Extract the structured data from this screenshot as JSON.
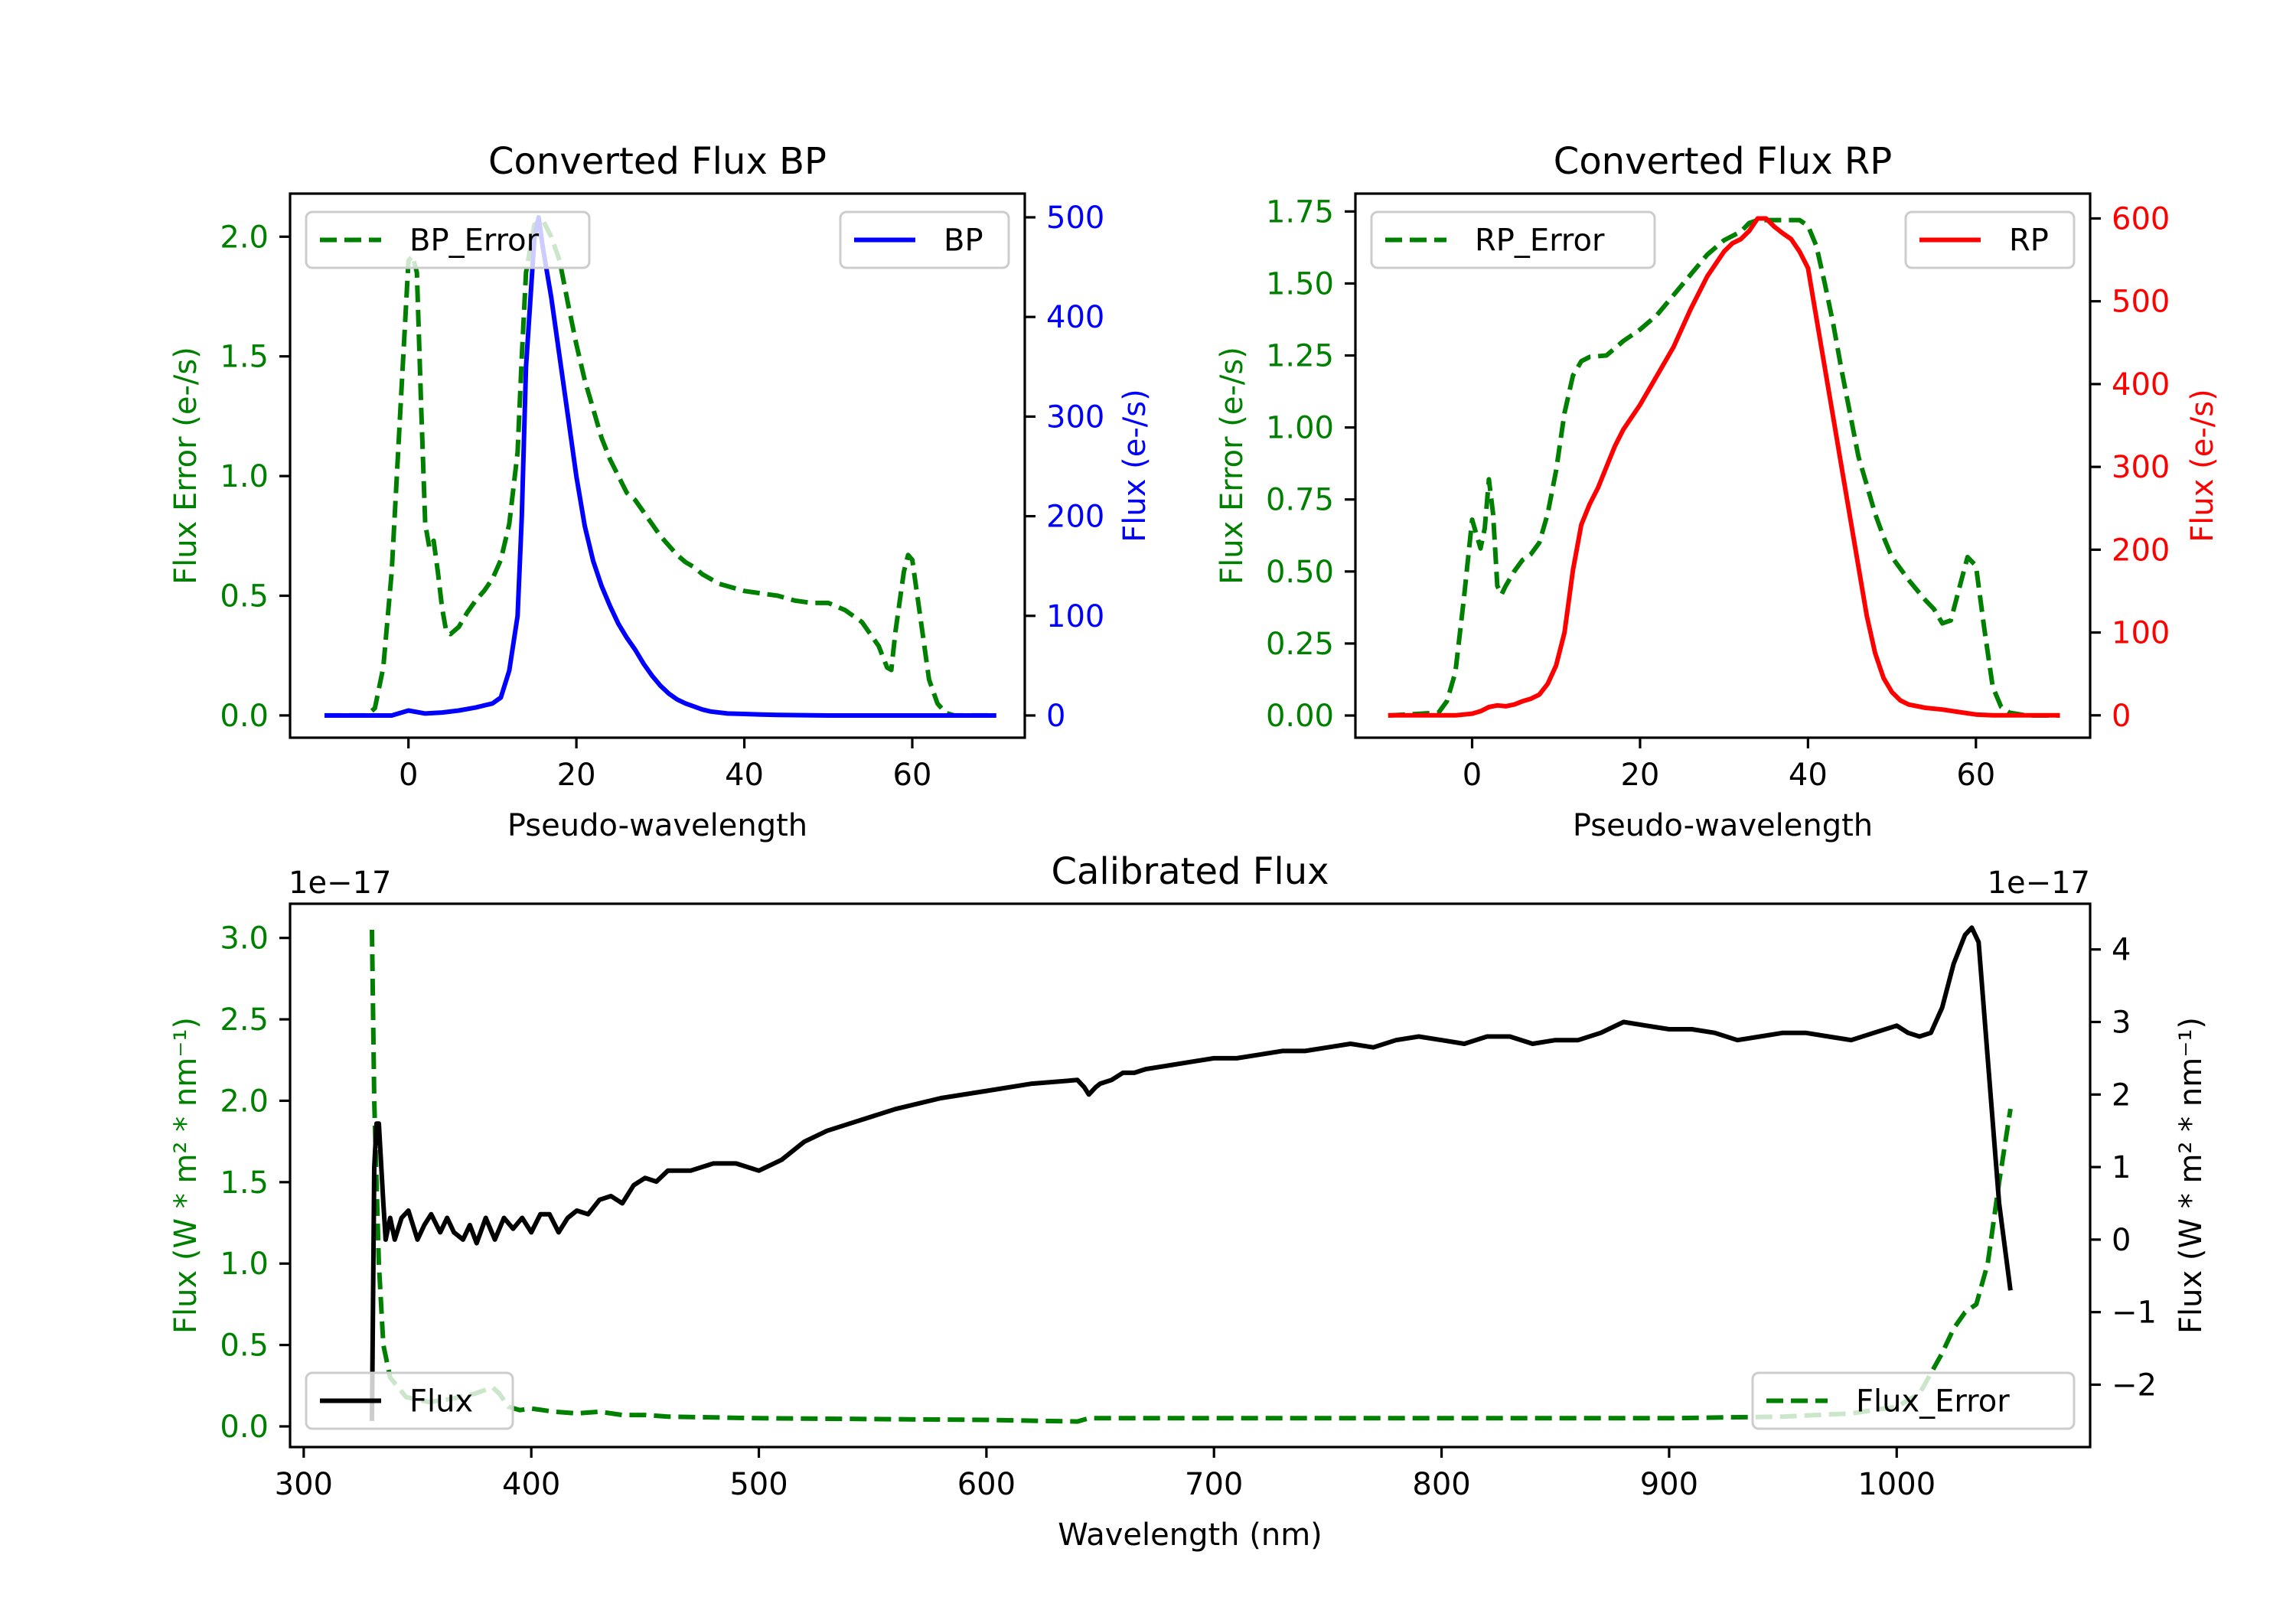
{
  "chart_data": [
    {
      "id": "bp",
      "type": "line",
      "title": "Converted Flux BP",
      "xlabel": "Pseudo-wavelength",
      "ylabel_left": "Flux Error (e-/s)",
      "ylabel_right": "Flux (e-/s)",
      "left_color": "#008000",
      "right_color": "#0000ff",
      "xlim": [
        -14.1,
        73.4
      ],
      "ylim_left": [
        -0.093,
        2.18
      ],
      "ylim_right": [
        -22.3,
        523.8
      ],
      "xticks": [
        0,
        20,
        40,
        60
      ],
      "xtick_labels": [
        "0",
        "20",
        "40",
        "60"
      ],
      "yticks_left": [
        0,
        0.5,
        1.0,
        1.5,
        2.0
      ],
      "ytick_labels_left": [
        "0.0",
        "0.5",
        "1.0",
        "1.5",
        "2.0"
      ],
      "yticks_right": [
        0,
        100,
        200,
        300,
        400,
        500
      ],
      "ytick_labels_right": [
        "0",
        "100",
        "200",
        "300",
        "400",
        "500"
      ],
      "legends": [
        {
          "label": "BP_Error",
          "series": 0,
          "placement": "upper left"
        },
        {
          "label": "BP",
          "series": 1,
          "placement": "upper right"
        }
      ],
      "series": [
        {
          "name": "BP_Error",
          "axis": "left",
          "color": "#008000",
          "style": "dashed",
          "x": [
            -10,
            -5,
            -4,
            -3,
            -2,
            -1,
            0,
            0.5,
            1,
            1.5,
            2,
            2.5,
            3,
            3.5,
            4,
            4.5,
            5,
            6,
            7,
            8,
            9,
            10,
            11,
            12,
            13,
            13.5,
            14,
            15,
            16,
            17,
            18,
            19,
            20,
            21,
            22,
            23,
            24,
            25,
            26,
            27,
            28,
            29,
            30,
            31,
            32,
            33,
            34,
            35,
            36,
            37,
            38,
            40,
            42,
            44,
            46,
            48,
            50,
            52,
            54,
            56,
            57,
            57.5,
            58,
            59,
            59.5,
            60,
            61,
            62,
            63,
            64,
            65,
            70
          ],
          "y": [
            0,
            0,
            0.03,
            0.2,
            0.6,
            1.25,
            1.9,
            1.92,
            1.85,
            1.3,
            0.8,
            0.7,
            0.73,
            0.6,
            0.45,
            0.35,
            0.34,
            0.37,
            0.43,
            0.48,
            0.52,
            0.57,
            0.65,
            0.8,
            1.1,
            1.5,
            1.85,
            2.05,
            2.07,
            2.0,
            1.9,
            1.72,
            1.55,
            1.4,
            1.28,
            1.16,
            1.07,
            1.0,
            0.93,
            0.9,
            0.85,
            0.8,
            0.75,
            0.71,
            0.67,
            0.64,
            0.62,
            0.59,
            0.57,
            0.55,
            0.54,
            0.52,
            0.51,
            0.5,
            0.48,
            0.47,
            0.47,
            0.44,
            0.39,
            0.29,
            0.2,
            0.19,
            0.35,
            0.6,
            0.67,
            0.65,
            0.4,
            0.15,
            0.05,
            0.01,
            0,
            0
          ]
        },
        {
          "name": "BP",
          "axis": "right",
          "color": "#0000ff",
          "style": "solid",
          "x": [
            -10,
            -2,
            0,
            2,
            4,
            6,
            8,
            10,
            11,
            12,
            13,
            13.5,
            14,
            15,
            15.5,
            16,
            17,
            18,
            19,
            20,
            21,
            22,
            23,
            24,
            25,
            26,
            27,
            28,
            29,
            30,
            31,
            32,
            33,
            34,
            35,
            36,
            38,
            40,
            42,
            44,
            50,
            70
          ],
          "y": [
            0,
            0,
            5,
            2,
            3,
            5,
            8,
            12,
            18,
            45,
            100,
            200,
            350,
            480,
            500,
            470,
            420,
            360,
            300,
            240,
            190,
            155,
            130,
            110,
            92,
            78,
            66,
            52,
            40,
            30,
            22,
            16,
            12,
            9,
            6,
            4,
            2,
            1.5,
            1,
            0.5,
            0,
            0
          ]
        }
      ]
    },
    {
      "id": "rp",
      "type": "line",
      "title": "Converted Flux RP",
      "xlabel": "Pseudo-wavelength",
      "ylabel_left": "Flux Error (e-/s)",
      "ylabel_right": "Flux (e-/s)",
      "left_color": "#008000",
      "right_color": "#ff0000",
      "xlim": [
        -13.9,
        73.6
      ],
      "ylim_left": [
        -0.077,
        1.812
      ],
      "ylim_right": [
        -27,
        630
      ],
      "xticks": [
        0,
        20,
        40,
        60
      ],
      "xtick_labels": [
        "0",
        "20",
        "40",
        "60"
      ],
      "yticks_left": [
        0,
        0.25,
        0.5,
        0.75,
        1.0,
        1.25,
        1.5,
        1.75
      ],
      "ytick_labels_left": [
        "0.00",
        "0.25",
        "0.50",
        "0.75",
        "1.00",
        "1.25",
        "1.50",
        "1.75"
      ],
      "yticks_right": [
        0,
        100,
        200,
        300,
        400,
        500,
        600
      ],
      "ytick_labels_right": [
        "0",
        "100",
        "200",
        "300",
        "400",
        "500",
        "600"
      ],
      "legends": [
        {
          "label": "RP_Error",
          "series": 0,
          "placement": "upper left"
        },
        {
          "label": "RP",
          "series": 1,
          "placement": "upper right"
        }
      ],
      "series": [
        {
          "name": "RP_Error",
          "axis": "left",
          "color": "#008000",
          "style": "dashed",
          "x": [
            -10,
            -4,
            -3,
            -2,
            -1,
            0,
            0.5,
            1,
            1.5,
            2,
            2.5,
            3,
            3.5,
            4,
            5,
            6,
            7,
            8,
            9,
            10,
            11,
            12,
            13,
            14,
            16,
            18,
            20,
            22,
            24,
            26,
            28,
            30,
            32,
            33,
            34,
            36,
            38,
            39,
            40,
            41,
            42,
            43,
            44,
            45,
            46,
            47,
            48,
            49,
            50,
            52,
            54,
            55,
            56,
            57,
            58,
            59,
            60,
            61,
            62,
            63,
            64,
            66,
            70
          ],
          "y": [
            0,
            0.01,
            0.05,
            0.15,
            0.4,
            0.68,
            0.63,
            0.58,
            0.65,
            0.82,
            0.7,
            0.45,
            0.42,
            0.45,
            0.5,
            0.54,
            0.56,
            0.6,
            0.7,
            0.85,
            1.05,
            1.18,
            1.23,
            1.245,
            1.25,
            1.3,
            1.34,
            1.39,
            1.46,
            1.53,
            1.6,
            1.65,
            1.68,
            1.71,
            1.72,
            1.72,
            1.72,
            1.72,
            1.7,
            1.63,
            1.5,
            1.36,
            1.2,
            1.05,
            0.9,
            0.8,
            0.7,
            0.62,
            0.55,
            0.47,
            0.4,
            0.37,
            0.32,
            0.33,
            0.44,
            0.55,
            0.52,
            0.3,
            0.1,
            0.03,
            0.01,
            0,
            0
          ]
        },
        {
          "name": "RP",
          "axis": "right",
          "color": "#ff0000",
          "style": "solid",
          "x": [
            -10,
            -2,
            0,
            1,
            2,
            3,
            4,
            5,
            6,
            7,
            8,
            9,
            10,
            11,
            12,
            13,
            14,
            15,
            16,
            17,
            18,
            20,
            22,
            24,
            26,
            28,
            30,
            31,
            32,
            33,
            34,
            35,
            36,
            37,
            38,
            39,
            40,
            41,
            42,
            43,
            44,
            45,
            46,
            47,
            48,
            49,
            50,
            51,
            52,
            54,
            56,
            58,
            60,
            62,
            70
          ],
          "y": [
            0,
            0,
            2,
            5,
            10,
            12,
            11,
            13,
            17,
            20,
            25,
            38,
            60,
            100,
            175,
            230,
            255,
            275,
            300,
            325,
            345,
            375,
            410,
            445,
            490,
            530,
            560,
            570,
            575,
            585,
            600,
            600,
            590,
            582,
            575,
            560,
            540,
            480,
            420,
            360,
            300,
            240,
            180,
            120,
            75,
            45,
            28,
            18,
            13,
            9,
            7,
            4,
            1,
            0,
            0
          ]
        }
      ]
    },
    {
      "id": "cal",
      "type": "line",
      "title": "Calibrated Flux",
      "xlabel": "Wavelength (nm)",
      "ylabel_left": "Flux (W * m² * nm⁻¹)",
      "ylabel_right": "Flux (W * m² * nm⁻¹)",
      "offset_left": "1e−17",
      "offset_right": "1e−17",
      "left_color": "#008000",
      "right_color": "#000000",
      "xlim": [
        294,
        1085
      ],
      "ylim_left": [
        -0.127,
        3.21
      ],
      "ylim_right": [
        -2.86,
        4.63
      ],
      "xticks": [
        300,
        400,
        500,
        600,
        700,
        800,
        900,
        1000
      ],
      "xtick_labels": [
        "300",
        "400",
        "500",
        "600",
        "700",
        "800",
        "900",
        "1000"
      ],
      "yticks_left": [
        0,
        0.5,
        1.0,
        1.5,
        2.0,
        2.5,
        3.0
      ],
      "ytick_labels_left": [
        "0.0",
        "0.5",
        "1.0",
        "1.5",
        "2.0",
        "2.5",
        "3.0"
      ],
      "yticks_right": [
        -2,
        -1,
        0,
        1,
        2,
        3,
        4
      ],
      "ytick_labels_right": [
        "−2",
        "−1",
        "0",
        "1",
        "2",
        "3",
        "4"
      ],
      "legends": [
        {
          "label": "Flux",
          "series": 1,
          "placement": "lower left"
        },
        {
          "label": "Flux_Error",
          "series": 0,
          "placement": "lower right"
        }
      ],
      "series": [
        {
          "name": "Flux_Error",
          "axis": "left",
          "color": "#008000",
          "style": "dashed",
          "x": [
            330,
            331,
            333,
            335,
            338,
            345,
            355,
            365,
            375,
            383,
            386,
            390,
            395,
            400,
            410,
            420,
            430,
            440,
            450,
            460,
            500,
            600,
            640,
            645,
            700,
            800,
            900,
            950,
            980,
            1000,
            1010,
            1020,
            1025,
            1030,
            1035,
            1040,
            1045,
            1050
          ],
          "y": [
            3.05,
            2.0,
            1.0,
            0.5,
            0.3,
            0.18,
            0.15,
            0.17,
            0.2,
            0.24,
            0.2,
            0.12,
            0.1,
            0.11,
            0.09,
            0.08,
            0.09,
            0.07,
            0.07,
            0.06,
            0.05,
            0.04,
            0.03,
            0.05,
            0.05,
            0.05,
            0.05,
            0.06,
            0.08,
            0.12,
            0.2,
            0.45,
            0.6,
            0.7,
            0.75,
            1.0,
            1.5,
            1.95
          ]
        },
        {
          "name": "Flux",
          "axis": "right",
          "color": "#000000",
          "style": "solid",
          "x": [
            330,
            331,
            332,
            333,
            335,
            336,
            338,
            340,
            343,
            346,
            350,
            353,
            356,
            360,
            363,
            366,
            370,
            373,
            376,
            380,
            384,
            388,
            392,
            396,
            400,
            404,
            408,
            412,
            416,
            420,
            425,
            430,
            435,
            440,
            445,
            450,
            455,
            460,
            470,
            480,
            490,
            500,
            510,
            520,
            530,
            540,
            560,
            580,
            600,
            620,
            640,
            643,
            645,
            648,
            650,
            655,
            660,
            665,
            670,
            680,
            690,
            700,
            710,
            720,
            730,
            740,
            750,
            760,
            770,
            780,
            790,
            800,
            810,
            820,
            830,
            840,
            850,
            860,
            870,
            880,
            890,
            900,
            910,
            920,
            930,
            940,
            950,
            960,
            970,
            980,
            990,
            1000,
            1005,
            1010,
            1015,
            1020,
            1025,
            1030,
            1033,
            1036,
            1040,
            1045,
            1050
          ],
          "y": [
            -2.5,
            1.0,
            1.6,
            1.6,
            0.5,
            0.0,
            0.3,
            0.0,
            0.3,
            0.4,
            0.0,
            0.2,
            0.35,
            0.1,
            0.3,
            0.1,
            0.0,
            0.2,
            -0.05,
            0.3,
            0.0,
            0.3,
            0.15,
            0.3,
            0.1,
            0.35,
            0.35,
            0.1,
            0.3,
            0.4,
            0.35,
            0.55,
            0.6,
            0.5,
            0.75,
            0.85,
            0.8,
            0.95,
            0.95,
            1.05,
            1.05,
            0.95,
            1.1,
            1.35,
            1.5,
            1.6,
            1.8,
            1.95,
            2.05,
            2.15,
            2.2,
            2.1,
            2.0,
            2.1,
            2.15,
            2.2,
            2.3,
            2.3,
            2.35,
            2.4,
            2.45,
            2.5,
            2.5,
            2.55,
            2.6,
            2.6,
            2.65,
            2.7,
            2.65,
            2.75,
            2.8,
            2.75,
            2.7,
            2.8,
            2.8,
            2.7,
            2.75,
            2.75,
            2.85,
            3.0,
            2.95,
            2.9,
            2.9,
            2.85,
            2.75,
            2.8,
            2.85,
            2.85,
            2.8,
            2.75,
            2.85,
            2.95,
            2.85,
            2.8,
            2.85,
            3.2,
            3.8,
            4.2,
            4.3,
            4.1,
            2.5,
            0.5,
            -0.7
          ]
        }
      ]
    }
  ]
}
